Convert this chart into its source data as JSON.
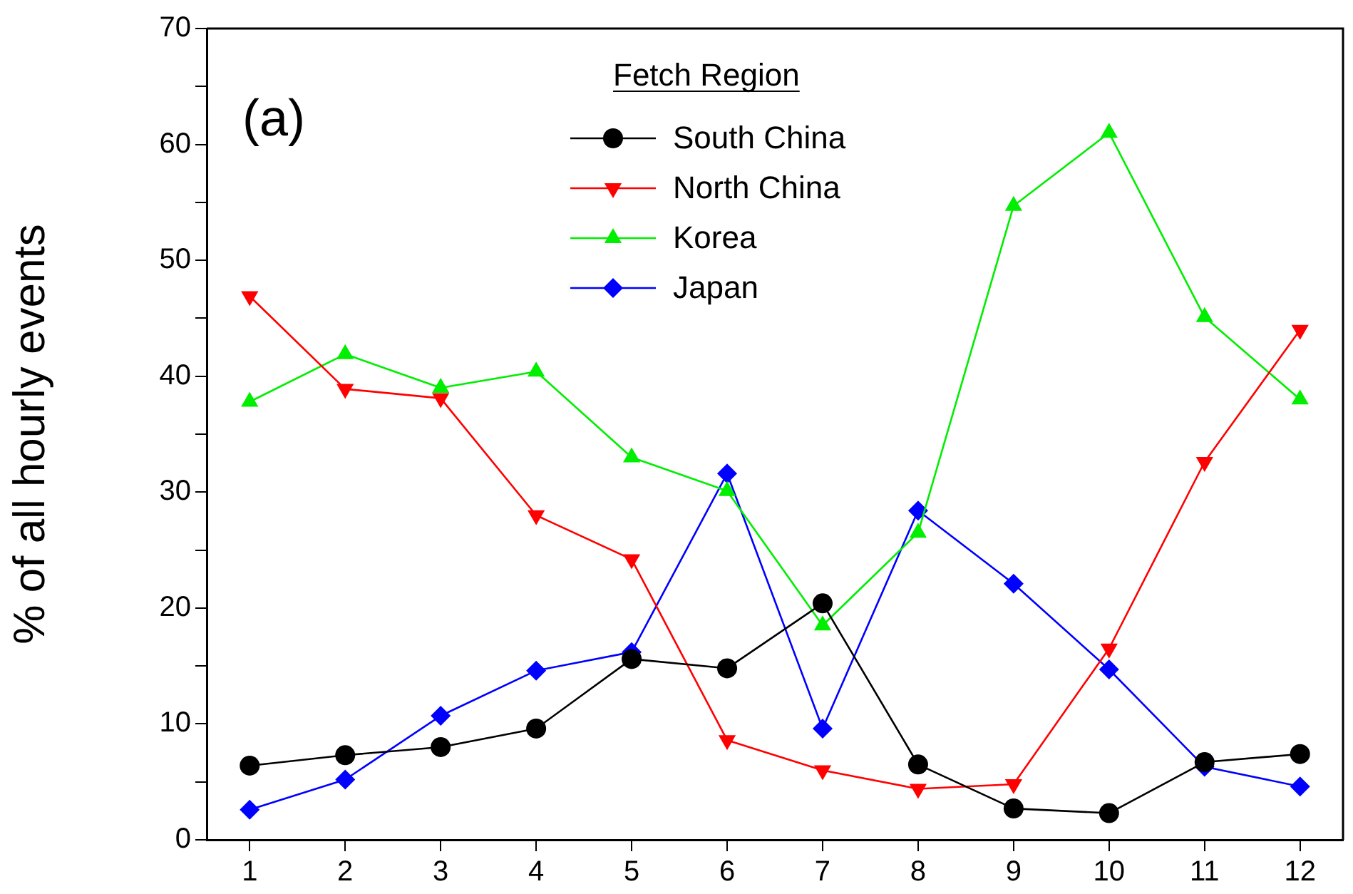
{
  "chart_data": {
    "type": "line",
    "ylabel": "% of all hourly events",
    "legend_title": "Fetch Region",
    "legend": "top",
    "grid": false,
    "annotations": [
      "(a)"
    ],
    "x": [
      1,
      2,
      3,
      4,
      5,
      6,
      7,
      8,
      9,
      10,
      11,
      12
    ],
    "xlim": [
      0.55,
      12.45
    ],
    "xticks": [
      1,
      2,
      3,
      4,
      5,
      6,
      7,
      8,
      9,
      10,
      11,
      12
    ],
    "ylim": [
      0,
      70
    ],
    "yticks": [
      0,
      {
        "value": 5,
        "label": null
      },
      10,
      {
        "value": 15,
        "label": null
      },
      20,
      {
        "value": 25,
        "label": null
      },
      30,
      {
        "value": 35,
        "label": null
      },
      40,
      {
        "value": 45,
        "label": null
      },
      50,
      {
        "value": 55,
        "label": null
      },
      60,
      {
        "value": 65,
        "label": null
      },
      70
    ],
    "series": [
      {
        "name": "South China",
        "color": "#000000",
        "marker": "circle",
        "values": [
          6.4,
          7.3,
          8.0,
          9.6,
          15.6,
          14.8,
          20.4,
          6.5,
          2.7,
          2.3,
          6.7,
          7.4
        ]
      },
      {
        "name": "North China",
        "color": "#ff0000",
        "marker": "triangle-down",
        "values": [
          46.9,
          38.9,
          38.1,
          28.0,
          24.2,
          8.6,
          6.0,
          4.4,
          4.8,
          16.5,
          32.6,
          44.0
        ]
      },
      {
        "name": "Korea",
        "color": "#00ee00",
        "marker": "triangle",
        "values": [
          37.8,
          41.9,
          39.0,
          40.4,
          33.0,
          30.1,
          18.5,
          26.5,
          54.7,
          61.0,
          45.1,
          38.0
        ]
      },
      {
        "name": "Japan",
        "color": "#0000ff",
        "marker": "diamond",
        "values": [
          2.6,
          5.2,
          10.7,
          14.6,
          16.2,
          31.6,
          9.6,
          28.4,
          22.1,
          14.7,
          6.3,
          4.6
        ]
      }
    ]
  }
}
